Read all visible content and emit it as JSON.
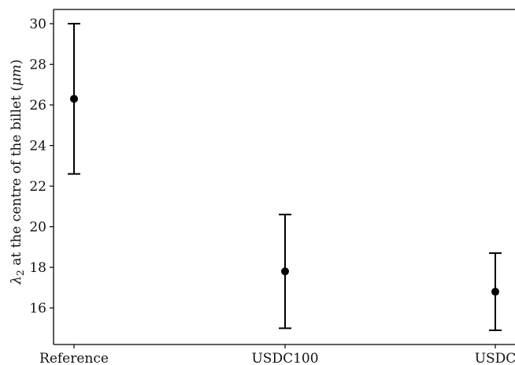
{
  "chart_data": {
    "type": "scatter",
    "subtype": "point-with-errorbars",
    "title": "",
    "xlabel": "",
    "ylabel": "λ2 at the centre of the billet (μm)",
    "ylabel_parts": {
      "symbol": "λ",
      "subscript": "2",
      "text": " at the centre of the billet (",
      "unit": "μm",
      "close": ")"
    },
    "ylim": [
      14.2,
      30.7
    ],
    "yticks": [
      16,
      18,
      20,
      22,
      24,
      26,
      28,
      30
    ],
    "grid": false,
    "legend": "none",
    "categories": [
      "Reference",
      "USDC100",
      "USDC"
    ],
    "series": [
      {
        "values": [
          26.3,
          17.8,
          16.8
        ],
        "err_low": [
          22.6,
          15.0,
          14.9
        ],
        "err_high": [
          30.0,
          20.6,
          18.7
        ]
      }
    ],
    "color": "#000000"
  }
}
